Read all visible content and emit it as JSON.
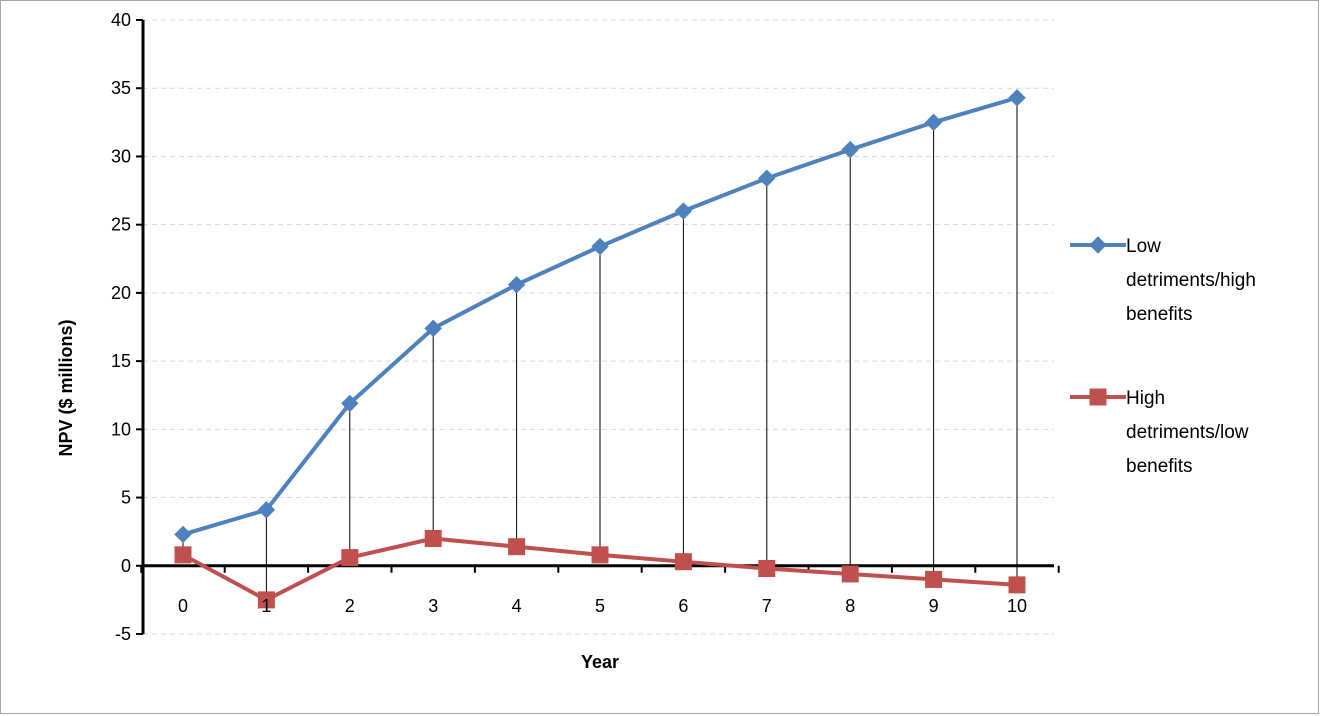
{
  "chart_data": {
    "type": "line",
    "title": "",
    "xlabel": "Year",
    "ylabel": "NPV ($ millions)",
    "x": [
      0,
      1,
      2,
      3,
      4,
      5,
      6,
      7,
      8,
      9,
      10
    ],
    "x_tick_labels": [
      "0",
      "1",
      "2",
      "3",
      "4",
      "5",
      "6",
      "7",
      "8",
      "9",
      "10"
    ],
    "ylim": [
      -5,
      40
    ],
    "y_ticks": [
      -5,
      0,
      5,
      10,
      15,
      20,
      25,
      30,
      35,
      40
    ],
    "y_tick_labels": [
      "-5",
      "0",
      "5",
      "10",
      "15",
      "20",
      "25",
      "30",
      "35",
      "40"
    ],
    "grid": "horizontal dashed",
    "drop_lines": true,
    "legend_position": "right",
    "series": [
      {
        "name": "Low detriments/high benefits",
        "legend_lines": [
          "Low",
          "detriments/high",
          "benefits"
        ],
        "marker": "diamond",
        "color": "#4f81bd",
        "values": [
          2.3,
          4.1,
          11.9,
          17.4,
          20.6,
          23.4,
          26.0,
          28.4,
          30.5,
          32.5,
          34.3
        ]
      },
      {
        "name": "High detriments/low benefits",
        "legend_lines": [
          "High",
          "detriments/low",
          "benefits"
        ],
        "marker": "square",
        "color": "#c0504d",
        "values": [
          0.8,
          -2.5,
          0.6,
          2.0,
          1.4,
          0.8,
          0.3,
          -0.2,
          -0.6,
          -1.0,
          -1.4
        ]
      }
    ]
  }
}
